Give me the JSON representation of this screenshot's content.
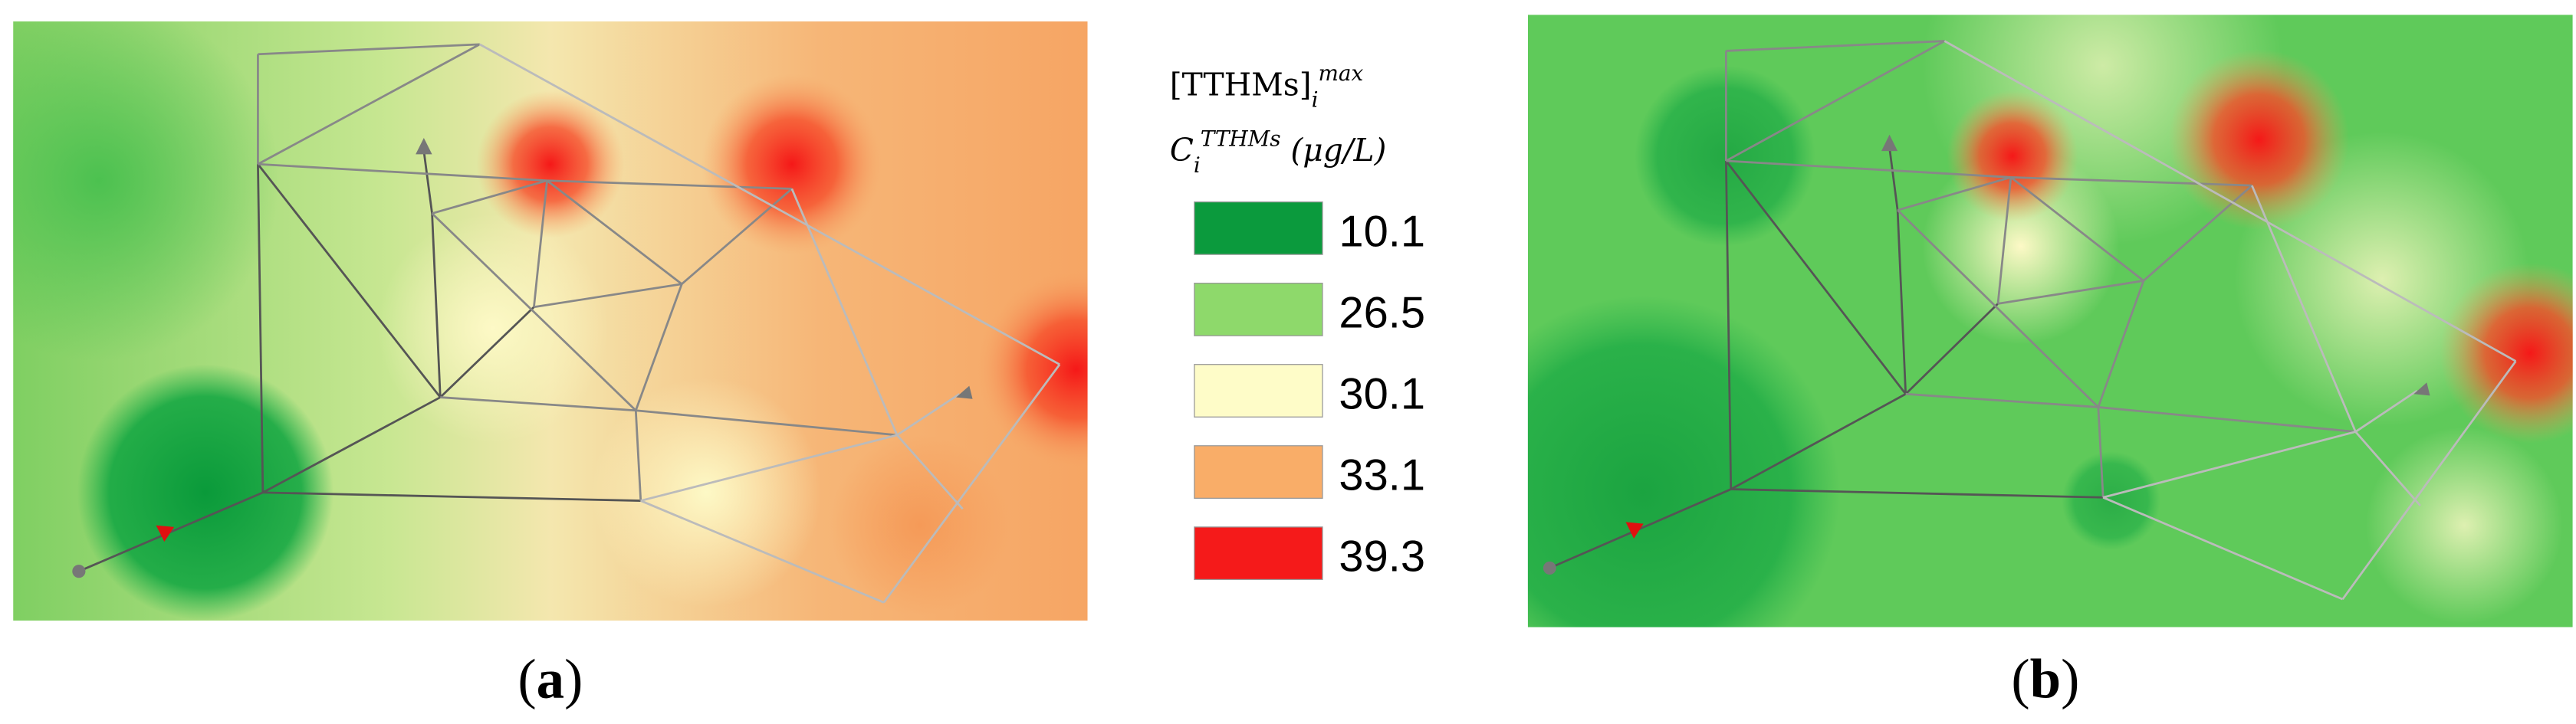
{
  "legend": {
    "title_1": {
      "base": "[TTHMs]",
      "sub": "i",
      "sup": "max"
    },
    "title_2": {
      "base": "C",
      "sub": "i",
      "sup": "TTHMs",
      "unit": "(μg/L)"
    },
    "items": [
      {
        "label": "10.1",
        "color": "#0b9a3d"
      },
      {
        "label": "26.5",
        "color": "#8ed96b"
      },
      {
        "label": "30.1",
        "color": "#fefcc8"
      },
      {
        "label": "33.1",
        "color": "#f9ad68"
      },
      {
        "label": "39.3",
        "color": "#f51a1a"
      }
    ]
  },
  "panels": [
    {
      "label": "a"
    },
    {
      "label": "b"
    }
  ]
}
